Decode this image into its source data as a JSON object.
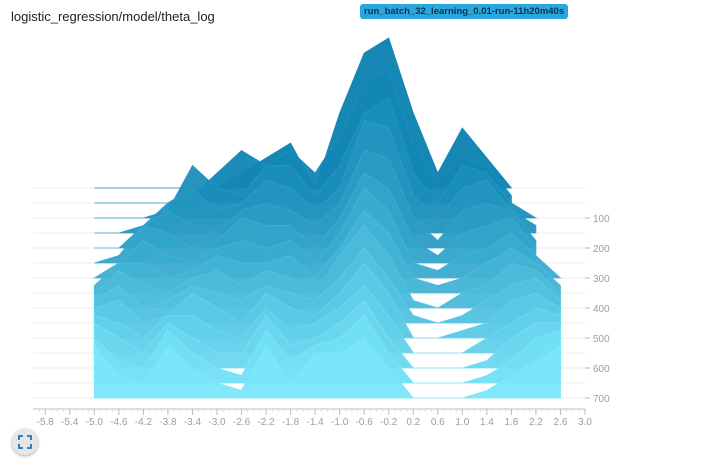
{
  "card": {
    "title": "logistic_regression/model/theta_log",
    "run_name": "run_batch_32_learning_0.01-run-11h20m40s"
  },
  "icons": {
    "expand": "fullscreen-expand-icon"
  },
  "colors": {
    "badge": "#29a8df",
    "oldest_slice": "#0a7fb0",
    "newest_slice": "#7ae6fa"
  },
  "chart_data": {
    "type": "histogram-offset",
    "title": "",
    "xlabel": "",
    "ylabel": "",
    "xlim": [
      -6.0,
      3.0
    ],
    "x_ticks": [
      "-5.8",
      "-5.4",
      "-5.0",
      "-4.6",
      "-4.2",
      "-3.8",
      "-3.4",
      "-3.0",
      "-2.6",
      "-2.2",
      "-1.8",
      "-1.4",
      "-1.0",
      "-0.6",
      "-0.2",
      "0.2",
      "0.6",
      "1.0",
      "1.4",
      "1.8",
      "2.2",
      "2.6",
      "3.0"
    ],
    "step_ticks": [
      "100",
      "200",
      "300",
      "400",
      "500",
      "600",
      "700"
    ],
    "step_range": [
      0,
      700
    ],
    "series": [
      {
        "step": 0,
        "x": [
          -5.0,
          -4.6,
          -4.2,
          -3.8,
          -3.4,
          -3.0,
          -2.6,
          -2.2,
          -1.8,
          -1.4,
          -1.0,
          -0.6,
          -0.2,
          0.2,
          0.6,
          1.0,
          1.4,
          1.8
        ],
        "counts": [
          0,
          0,
          0,
          0,
          0,
          0,
          0.1,
          0.2,
          0.3,
          0.0,
          0.5,
          0.9,
          1.0,
          0.5,
          0.1,
          0.4,
          0.2,
          0.0
        ]
      },
      {
        "step": 50,
        "x": [
          -5.0,
          -4.6,
          -4.2,
          -3.8,
          -3.4,
          -3.0,
          -2.6,
          -2.2,
          -1.8,
          -1.4,
          -1.0,
          -0.6,
          -0.2,
          0.2,
          0.6,
          1.0,
          1.4,
          1.8
        ],
        "counts": [
          0,
          0,
          0,
          0,
          0.05,
          0.2,
          0.35,
          0.25,
          0.35,
          0.2,
          0.45,
          0.8,
          0.9,
          0.4,
          0.15,
          0.3,
          0.25,
          0.05
        ]
      },
      {
        "step": 100,
        "x": [
          -5.0,
          -4.6,
          -4.2,
          -3.8,
          -3.4,
          -3.0,
          -2.6,
          -2.2,
          -1.8,
          -1.4,
          -1.0,
          -0.6,
          -0.2,
          0.2,
          0.6,
          1.0,
          1.4,
          1.8,
          2.2
        ],
        "counts": [
          0,
          0,
          0,
          0.05,
          0.35,
          0.2,
          0.15,
          0.35,
          0.35,
          0.15,
          0.35,
          0.7,
          0.8,
          0.3,
          0.1,
          0.35,
          0.3,
          0.1,
          0
        ]
      },
      {
        "step": 150,
        "x": [
          -5.0,
          -4.6,
          -4.2,
          -3.8,
          -3.4,
          -3.0,
          -2.6,
          -2.2,
          -1.8,
          -1.4,
          -1.0,
          -0.6,
          -0.2,
          0.2,
          0.6,
          1.0,
          1.4,
          1.8,
          2.2
        ],
        "counts": [
          0,
          0,
          0.05,
          0.2,
          0.3,
          0.15,
          0.2,
          0.35,
          0.3,
          0.15,
          0.3,
          0.75,
          0.7,
          0.25,
          0.1,
          0.3,
          0.35,
          0.15,
          0.05
        ]
      },
      {
        "step": 200,
        "x": [
          -5.0,
          -4.6,
          -4.2,
          -3.8,
          -3.4,
          -3.0,
          -2.6,
          -2.2,
          -1.8,
          -1.4,
          -1.0,
          -0.6,
          -0.2,
          0.2,
          0.6,
          1.0,
          1.4,
          1.8,
          2.2
        ],
        "counts": [
          0,
          0,
          0.15,
          0.25,
          0.15,
          0.1,
          0.25,
          0.3,
          0.25,
          0.15,
          0.3,
          0.65,
          0.6,
          0.2,
          0.05,
          0.25,
          0.3,
          0.25,
          0.05
        ]
      },
      {
        "step": 250,
        "x": [
          -5.0,
          -4.6,
          -4.2,
          -3.8,
          -3.4,
          -3.0,
          -2.6,
          -2.2,
          -1.8,
          -1.4,
          -1.0,
          -0.6,
          -0.2,
          0.2,
          0.6,
          1.0,
          1.4,
          1.8,
          2.2
        ],
        "counts": [
          0,
          0.05,
          0.25,
          0.2,
          0.1,
          0.15,
          0.3,
          0.25,
          0.25,
          0.1,
          0.3,
          0.6,
          0.5,
          0.15,
          0.05,
          0.2,
          0.25,
          0.3,
          0.1
        ]
      },
      {
        "step": 300,
        "x": [
          -5.0,
          -4.6,
          -4.2,
          -3.8,
          -3.4,
          -3.0,
          -2.6,
          -2.2,
          -1.8,
          -1.4,
          -1.0,
          -0.6,
          -0.2,
          0.2,
          0.6,
          1.0,
          1.4,
          1.8,
          2.2,
          2.6
        ],
        "counts": [
          0,
          0.1,
          0.25,
          0.15,
          0.1,
          0.2,
          0.25,
          0.2,
          0.25,
          0.1,
          0.3,
          0.6,
          0.45,
          0.1,
          0.05,
          0.15,
          0.2,
          0.3,
          0.15,
          0
        ]
      },
      {
        "step": 350,
        "x": [
          -5.0,
          -4.6,
          -4.2,
          -3.8,
          -3.4,
          -3.0,
          -2.6,
          -2.2,
          -1.8,
          -1.4,
          -1.0,
          -0.6,
          -0.2,
          0.2,
          0.6,
          1.0,
          1.4,
          1.8,
          2.2,
          2.6
        ],
        "counts": [
          0.05,
          0.2,
          0.2,
          0.1,
          0.15,
          0.25,
          0.2,
          0.2,
          0.25,
          0.1,
          0.3,
          0.55,
          0.4,
          0.1,
          0.05,
          0.1,
          0.2,
          0.3,
          0.2,
          0.05
        ]
      },
      {
        "step": 400,
        "x": [
          -5.0,
          -4.6,
          -4.2,
          -3.8,
          -3.4,
          -3.0,
          -2.6,
          -2.2,
          -1.8,
          -1.4,
          -1.0,
          -0.6,
          -0.2,
          0.2,
          0.6,
          1.0,
          1.4,
          1.8,
          2.2,
          2.6
        ],
        "counts": [
          0.1,
          0.25,
          0.15,
          0.1,
          0.2,
          0.25,
          0.15,
          0.25,
          0.2,
          0.1,
          0.35,
          0.55,
          0.35,
          0.05,
          0,
          0.1,
          0.15,
          0.3,
          0.25,
          0.1
        ]
      },
      {
        "step": 450,
        "x": [
          -5.0,
          -4.6,
          -4.2,
          -3.8,
          -3.4,
          -3.0,
          -2.6,
          -2.2,
          -1.8,
          -1.4,
          -1.0,
          -0.6,
          -0.2,
          0.2,
          0.6,
          1.0,
          1.4,
          1.8,
          2.2,
          2.6
        ],
        "counts": [
          0.15,
          0.25,
          0.1,
          0.15,
          0.25,
          0.2,
          0.15,
          0.25,
          0.2,
          0.15,
          0.3,
          0.5,
          0.3,
          0.05,
          0,
          0.05,
          0.15,
          0.25,
          0.3,
          0.15
        ]
      },
      {
        "step": 500,
        "x": [
          -5.0,
          -4.6,
          -4.2,
          -3.8,
          -3.4,
          -3.0,
          -2.6,
          -2.2,
          -1.8,
          -1.4,
          -1.0,
          -0.6,
          -0.2,
          0.2,
          0.6,
          1.0,
          1.4,
          1.8,
          2.2,
          2.6
        ],
        "counts": [
          0.2,
          0.25,
          0.1,
          0.15,
          0.3,
          0.2,
          0.1,
          0.3,
          0.2,
          0.15,
          0.3,
          0.5,
          0.3,
          0,
          0,
          0.05,
          0.1,
          0.25,
          0.3,
          0.2
        ]
      },
      {
        "step": 550,
        "x": [
          -5.0,
          -4.6,
          -4.2,
          -3.8,
          -3.4,
          -3.0,
          -2.6,
          -2.2,
          -1.8,
          -1.4,
          -1.0,
          -0.6,
          -0.2,
          0.2,
          0.6,
          1.0,
          1.4,
          1.8,
          2.2,
          2.6
        ],
        "counts": [
          0.25,
          0.2,
          0.1,
          0.25,
          0.25,
          0.15,
          0.1,
          0.3,
          0.15,
          0.2,
          0.3,
          0.45,
          0.25,
          0,
          0,
          0,
          0.1,
          0.2,
          0.3,
          0.25
        ]
      },
      {
        "step": 600,
        "x": [
          -5.0,
          -4.6,
          -4.2,
          -3.8,
          -3.4,
          -3.0,
          -2.6,
          -2.2,
          -1.8,
          -1.4,
          -1.0,
          -0.6,
          -0.2,
          0.2,
          0.6,
          1.0,
          1.4,
          1.8,
          2.2,
          2.6
        ],
        "counts": [
          0.3,
          0.2,
          0.1,
          0.3,
          0.2,
          0.1,
          0.1,
          0.35,
          0.15,
          0.2,
          0.3,
          0.45,
          0.2,
          0,
          0,
          0,
          0.05,
          0.2,
          0.3,
          0.3
        ]
      },
      {
        "step": 650,
        "x": [
          -5.0,
          -4.6,
          -4.2,
          -3.8,
          -3.4,
          -3.0,
          -2.6,
          -2.2,
          -1.8,
          -1.4,
          -1.0,
          -0.6,
          -0.2,
          0.2,
          0.6,
          1.0,
          1.4,
          1.8,
          2.2,
          2.6
        ],
        "counts": [
          0.3,
          0.15,
          0.1,
          0.35,
          0.2,
          0.1,
          0.05,
          0.35,
          0.15,
          0.25,
          0.3,
          0.45,
          0.2,
          0,
          0,
          0,
          0.05,
          0.15,
          0.3,
          0.35
        ]
      },
      {
        "step": 700,
        "x": [
          -5.0,
          -4.6,
          -4.2,
          -3.8,
          -3.4,
          -3.0,
          -2.6,
          -2.2,
          -1.8,
          -1.4,
          -1.0,
          -0.6,
          -0.2,
          0.2,
          0.6,
          1.0,
          1.4,
          1.8,
          2.2,
          2.6
        ],
        "counts": [
          0.35,
          0.15,
          0.1,
          0.35,
          0.2,
          0.1,
          0.05,
          0.35,
          0.1,
          0.3,
          0.3,
          0.4,
          0.2,
          0,
          0,
          0,
          0.05,
          0.15,
          0.25,
          0.35
        ]
      }
    ]
  }
}
